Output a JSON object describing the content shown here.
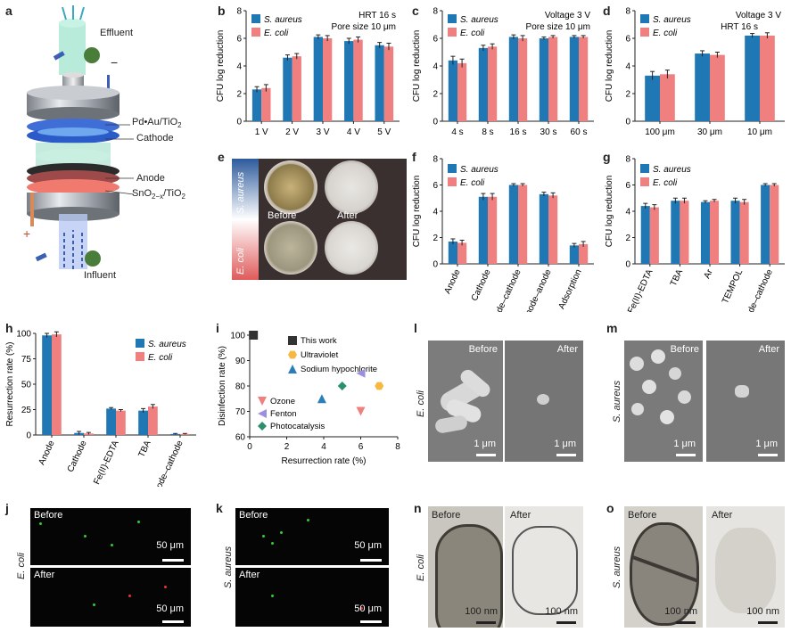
{
  "panel_letters": {
    "a": "a",
    "b": "b",
    "c": "c",
    "d": "d",
    "e": "e",
    "f": "f",
    "g": "g",
    "h": "h",
    "i": "i",
    "j": "j",
    "k": "k",
    "l": "l",
    "m": "m",
    "n": "n",
    "o": "o"
  },
  "panel_a": {
    "effluent": "Effluent",
    "minus": "−",
    "pd": "Pd•Au/TiO",
    "pd_sub": "2",
    "cathode": "Cathode",
    "anode": "Anode",
    "sno": "SnO",
    "sno_sub1": "2−x",
    "sno_mid": "/TiO",
    "sno_sub2": "2",
    "plus": "+",
    "influent": "Influent"
  },
  "legend": {
    "s_aureus": "S. aureus",
    "e_coli": "E. coli"
  },
  "colors": {
    "s_aureus": "#1f77b4",
    "e_coli": "#f08080"
  },
  "chart_data": [
    {
      "id": "b",
      "type": "bar",
      "categories": [
        "1 V",
        "2 V",
        "3 V",
        "4 V",
        "5 V"
      ],
      "series": [
        {
          "name": "S. aureus",
          "values": [
            2.3,
            4.6,
            6.1,
            5.8,
            5.5
          ],
          "err": [
            0.2,
            0.2,
            0.15,
            0.2,
            0.2
          ]
        },
        {
          "name": "E. coli",
          "values": [
            2.4,
            4.7,
            6.0,
            5.9,
            5.4
          ],
          "err": [
            0.25,
            0.2,
            0.2,
            0.2,
            0.25
          ]
        }
      ],
      "ylabel": "CFU log reduction",
      "ylim": [
        0,
        8
      ],
      "yticks": [
        0,
        2,
        4,
        6,
        8
      ],
      "annotations": [
        "HRT 16 s",
        "Pore size 10 μm"
      ]
    },
    {
      "id": "c",
      "type": "bar",
      "categories": [
        "4 s",
        "8 s",
        "16 s",
        "30 s",
        "60 s"
      ],
      "series": [
        {
          "name": "S. aureus",
          "values": [
            4.4,
            5.3,
            6.1,
            6.0,
            6.1
          ],
          "err": [
            0.3,
            0.2,
            0.15,
            0.1,
            0.1
          ]
        },
        {
          "name": "E. coli",
          "values": [
            4.2,
            5.4,
            6.0,
            6.1,
            6.1
          ],
          "err": [
            0.3,
            0.2,
            0.2,
            0.1,
            0.1
          ]
        }
      ],
      "ylabel": "CFU log reduction",
      "ylim": [
        0,
        8
      ],
      "yticks": [
        0,
        2,
        4,
        6,
        8
      ],
      "annotations": [
        "Voltage 3 V",
        "Pore size 10 μm"
      ]
    },
    {
      "id": "d",
      "type": "bar",
      "categories": [
        "100 μm",
        "30 μm",
        "10 μm"
      ],
      "series": [
        {
          "name": "S. aureus",
          "values": [
            3.3,
            4.9,
            6.2
          ],
          "err": [
            0.3,
            0.2,
            0.15
          ]
        },
        {
          "name": "E. coli",
          "values": [
            3.4,
            4.8,
            6.2
          ],
          "err": [
            0.3,
            0.2,
            0.2
          ]
        }
      ],
      "ylabel": "CFU log reduction",
      "ylim": [
        0,
        8
      ],
      "yticks": [
        0,
        2,
        4,
        6,
        8
      ],
      "annotations": [
        "Voltage 3 V",
        "HRT 16 s"
      ]
    },
    {
      "id": "f",
      "type": "bar",
      "categories": [
        "Anode",
        "Cathode",
        "Anode–cathode",
        "Cathode–anode",
        "Adsorption"
      ],
      "series": [
        {
          "name": "S. aureus",
          "values": [
            1.7,
            5.1,
            6.0,
            5.3,
            1.4
          ],
          "err": [
            0.2,
            0.25,
            0.1,
            0.15,
            0.15
          ]
        },
        {
          "name": "E. coli",
          "values": [
            1.6,
            5.1,
            6.0,
            5.2,
            1.5
          ],
          "err": [
            0.2,
            0.25,
            0.1,
            0.2,
            0.2
          ]
        }
      ],
      "ylabel": "CFU log reduction",
      "ylim": [
        0,
        8
      ],
      "yticks": [
        0,
        2,
        4,
        6,
        8
      ]
    },
    {
      "id": "g",
      "type": "bar",
      "categories": [
        "Fe(II)-EDTA",
        "TBA",
        "Ar",
        "TEMPOL",
        "Anode–cathode"
      ],
      "series": [
        {
          "name": "S. aureus",
          "values": [
            4.4,
            4.8,
            4.7,
            4.8,
            6.0
          ],
          "err": [
            0.2,
            0.2,
            0.1,
            0.2,
            0.1
          ]
        },
        {
          "name": "E. coli",
          "values": [
            4.3,
            4.8,
            4.8,
            4.7,
            6.0
          ],
          "err": [
            0.2,
            0.2,
            0.1,
            0.2,
            0.1
          ]
        }
      ],
      "ylabel": "CFU log reduction",
      "ylim": [
        0,
        8
      ],
      "yticks": [
        0,
        2,
        4,
        6,
        8
      ]
    },
    {
      "id": "h",
      "type": "bar",
      "categories": [
        "Anode",
        "Cathode",
        "Fe(II)-EDTA",
        "TBA",
        "Anode–cathode"
      ],
      "series": [
        {
          "name": "S. aureus",
          "values": [
            98,
            2,
            26,
            24,
            1
          ],
          "err": [
            2,
            1.5,
            1,
            2,
            0.5
          ]
        },
        {
          "name": "E. coli",
          "values": [
            99,
            1.5,
            24,
            28,
            1
          ],
          "err": [
            2.5,
            1,
            1,
            2,
            0.5
          ]
        }
      ],
      "ylabel": "Resurrection rate (%)",
      "ylim": [
        0,
        100
      ],
      "yticks": [
        0,
        25,
        50,
        75,
        100
      ]
    },
    {
      "id": "i",
      "type": "scatter",
      "xlabel": "Resurrection rate (%)",
      "ylabel": "Disinfection rate (%)",
      "xlim": [
        0,
        8
      ],
      "ylim": [
        60,
        100
      ],
      "xticks": [
        0,
        2,
        4,
        6,
        8
      ],
      "yticks": [
        60,
        70,
        80,
        90,
        100
      ],
      "series": [
        {
          "name": "This work",
          "color": "#333333",
          "marker": "square",
          "points": [
            [
              0.2,
              100
            ]
          ]
        },
        {
          "name": "Ultraviolet",
          "color": "#f5b942",
          "marker": "hexagon",
          "points": [
            [
              7,
              80
            ]
          ]
        },
        {
          "name": "Sodium hypochlorite",
          "color": "#2a7fb8",
          "marker": "triangle-up",
          "points": [
            [
              3.9,
              75
            ]
          ]
        },
        {
          "name": "Ozone",
          "color": "#f08080",
          "marker": "triangle-down",
          "points": [
            [
              6,
              70
            ]
          ]
        },
        {
          "name": "Fenton",
          "color": "#9b8fe0",
          "marker": "triangle-left",
          "points": [
            [
              6,
              85
            ]
          ]
        },
        {
          "name": "Photocatalysis",
          "color": "#2a8f6a",
          "marker": "diamond",
          "points": [
            [
              5,
              80
            ]
          ]
        }
      ]
    }
  ],
  "panel_e": {
    "s_aureus": "S. aureus",
    "e_coli": "E. coli",
    "before": "Before",
    "after": "After"
  },
  "micro": {
    "before": "Before",
    "after": "After",
    "e_coli": "E. coli",
    "s_aureus": "S. aureus",
    "scale_1um": "1 μm",
    "scale_50um": "50 μm",
    "scale_100nm": "100 nm"
  }
}
